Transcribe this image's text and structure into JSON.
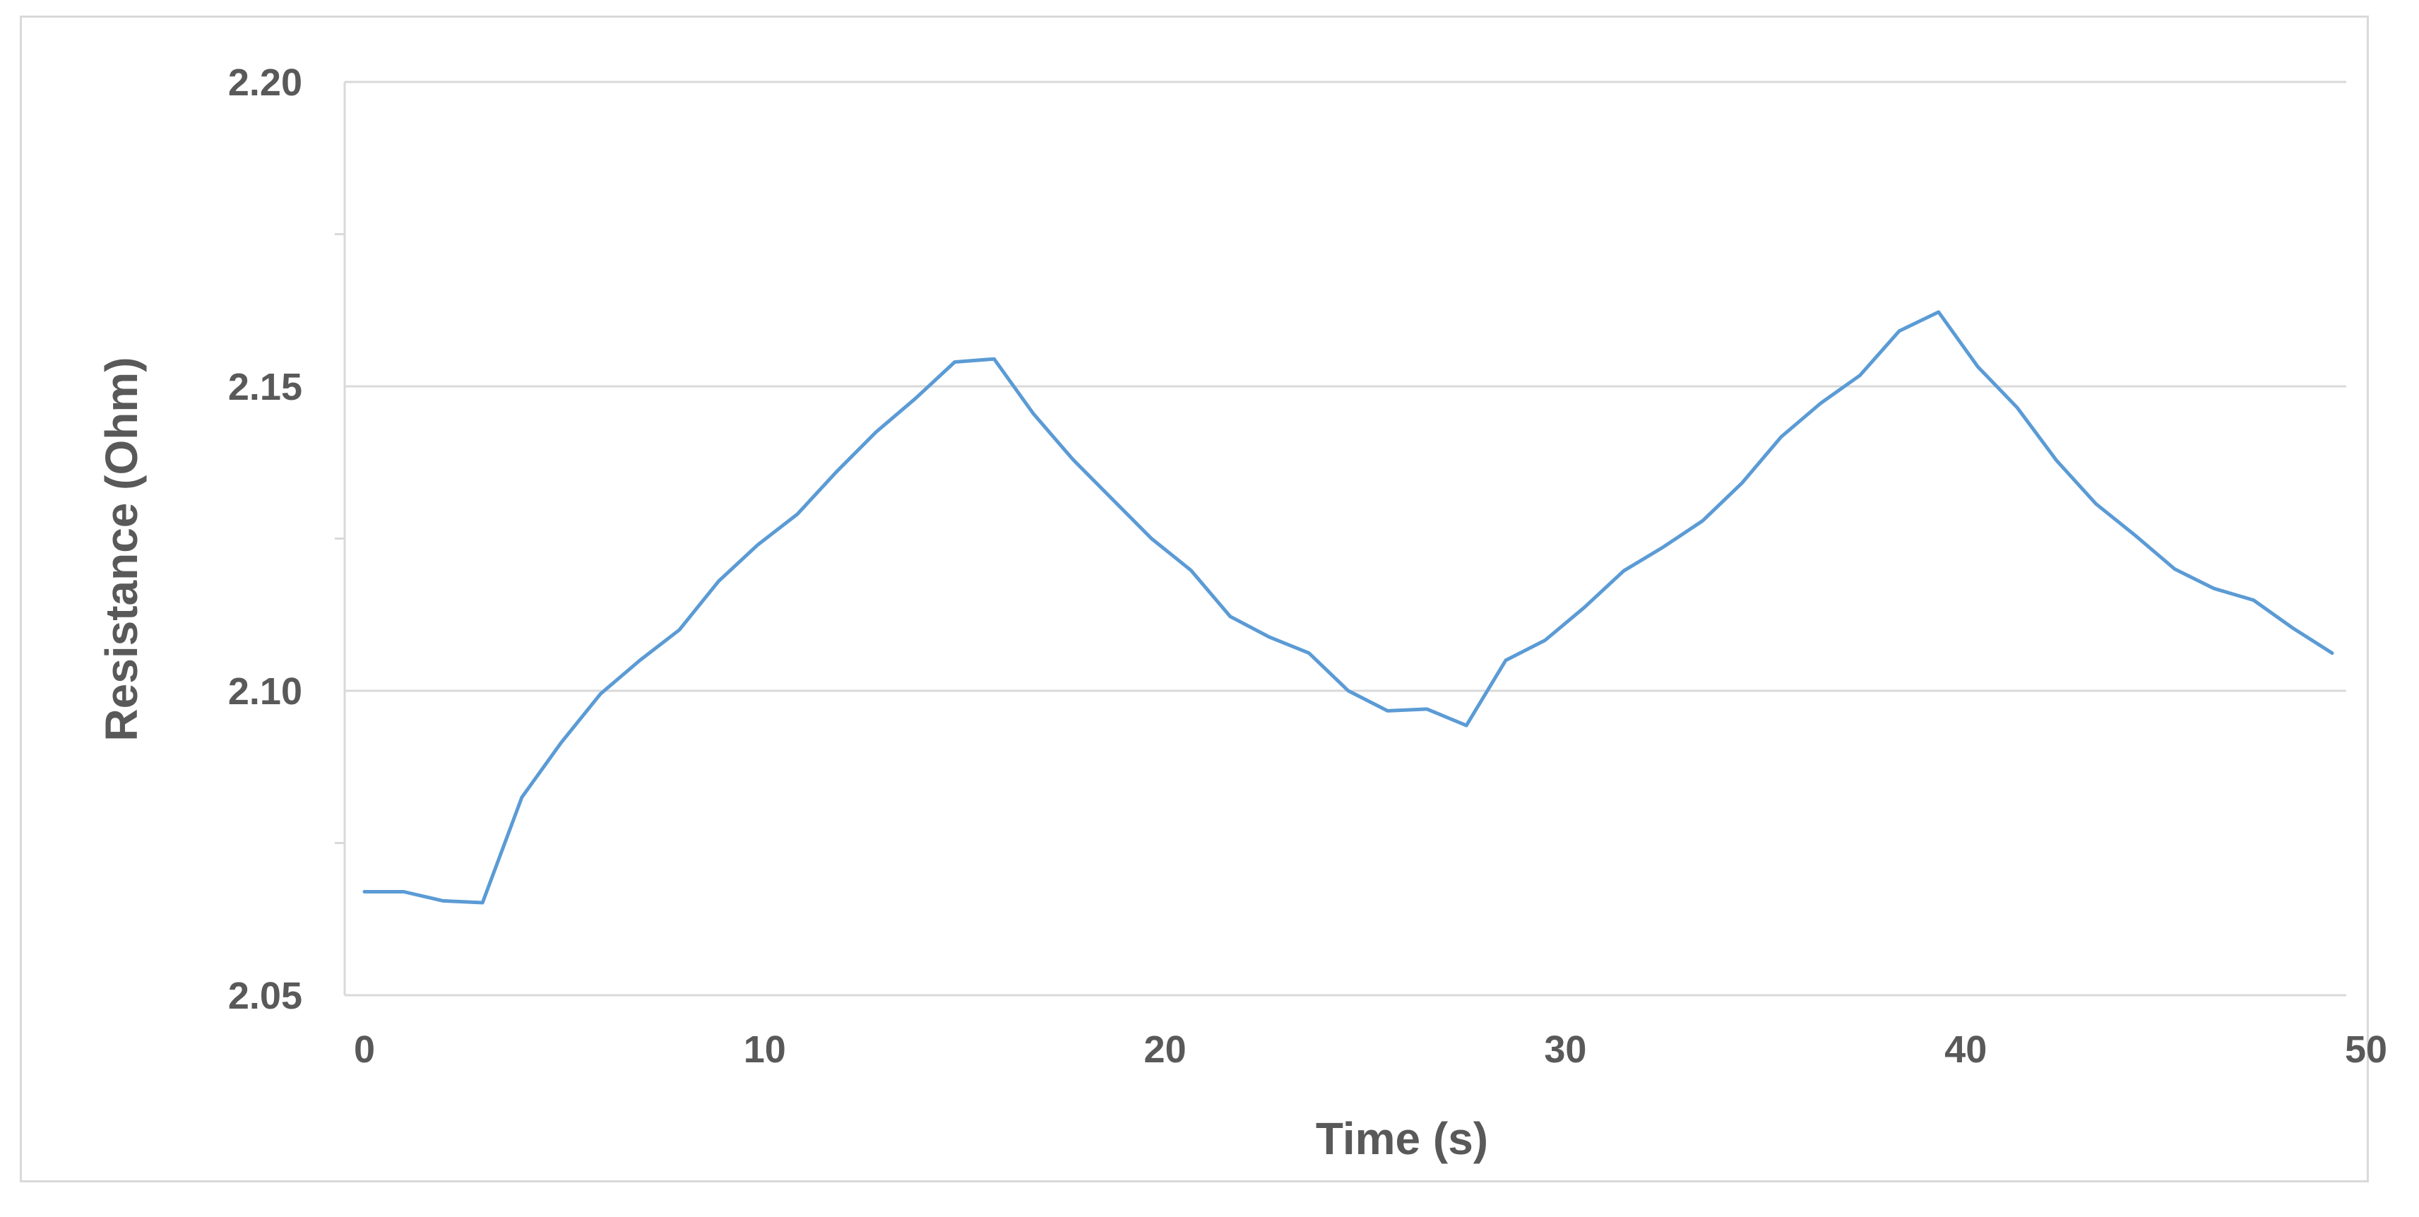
{
  "chart_data": {
    "type": "line",
    "title": "",
    "xlabel": "Time (s)",
    "ylabel": "Resistance (Ohm)",
    "xlim": [
      0,
      50
    ],
    "ylim": [
      2.05,
      2.2
    ],
    "x_ticks": [
      "0",
      "10",
      "20",
      "30",
      "40",
      "50"
    ],
    "y_ticks": [
      "2.05",
      "2.10",
      "2.15",
      "2.20"
    ],
    "grid": "horizontal major lines",
    "legend": "none",
    "line_color": "#5b9bd5",
    "series": [
      {
        "x": [
          0,
          1,
          2,
          3,
          4,
          5,
          6,
          7,
          8,
          9,
          10,
          11,
          12,
          13,
          14,
          15,
          16,
          17,
          18,
          19,
          20,
          21,
          22,
          23,
          24,
          25,
          26,
          27,
          28,
          29,
          30,
          31,
          32,
          33,
          34,
          35,
          36,
          37,
          38,
          39,
          40,
          41,
          42,
          43,
          44,
          45,
          46,
          47,
          48,
          49,
          50
        ],
        "values": [
          2.067,
          2.067,
          2.0655,
          2.0652,
          2.0825,
          2.0915,
          2.0995,
          2.105,
          2.11,
          2.118,
          2.124,
          2.129,
          2.136,
          2.1425,
          2.148,
          2.154,
          2.1545,
          2.1455,
          2.138,
          2.1315,
          2.125,
          2.1198,
          2.1122,
          2.1088,
          2.1062,
          2.1,
          2.0967,
          2.097,
          2.0943,
          2.105,
          2.1083,
          2.1137,
          2.1197,
          2.1236,
          2.1279,
          2.1341,
          2.1417,
          2.1472,
          2.1518,
          2.1591,
          2.1622,
          2.1532,
          2.1465,
          2.1378,
          2.1307,
          2.1255,
          2.12,
          2.1168,
          2.1149,
          2.1103,
          2.1062
        ]
      }
    ]
  }
}
